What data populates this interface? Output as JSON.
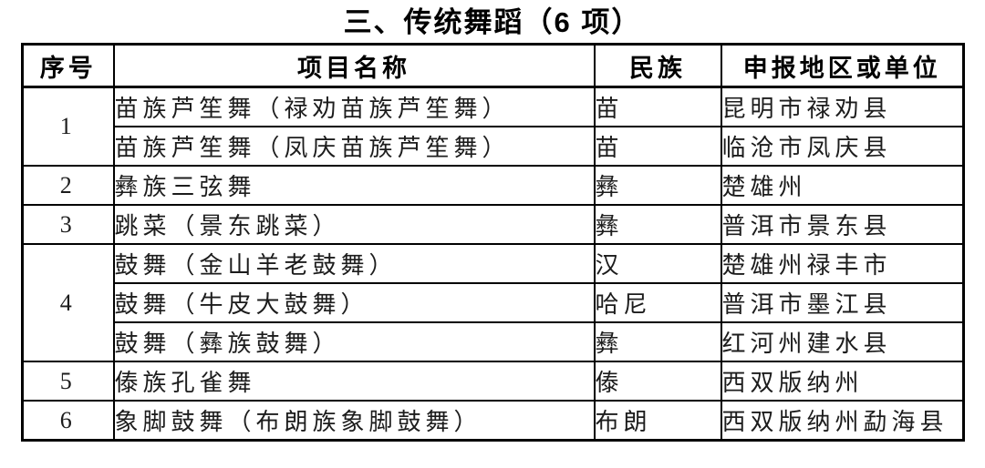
{
  "title": "三、传统舞蹈（6 项）",
  "table": {
    "headers": {
      "no": "序号",
      "name": "项目名称",
      "ethnic": "民族",
      "region": "申报地区或单位"
    },
    "groups": [
      {
        "no": "1",
        "items": [
          {
            "name": "苗族芦笙舞（禄劝苗族芦笙舞）",
            "ethnic": "苗",
            "region": "昆明市禄劝县"
          },
          {
            "name": "苗族芦笙舞（凤庆苗族芦笙舞）",
            "ethnic": "苗",
            "region": "临沧市凤庆县"
          }
        ]
      },
      {
        "no": "2",
        "items": [
          {
            "name": "彝族三弦舞",
            "ethnic": "彝",
            "region": "楚雄州"
          }
        ]
      },
      {
        "no": "3",
        "items": [
          {
            "name": "跳菜（景东跳菜）",
            "ethnic": "彝",
            "region": "普洱市景东县"
          }
        ]
      },
      {
        "no": "4",
        "items": [
          {
            "name": "鼓舞（金山羊老鼓舞）",
            "ethnic": "汉",
            "region": "楚雄州禄丰市"
          },
          {
            "name": "鼓舞（牛皮大鼓舞）",
            "ethnic": "哈尼",
            "region": "普洱市墨江县"
          },
          {
            "name": "鼓舞（彝族鼓舞）",
            "ethnic": "彝",
            "region": "红河州建水县"
          }
        ]
      },
      {
        "no": "5",
        "items": [
          {
            "name": "傣族孔雀舞",
            "ethnic": "傣",
            "region": "西双版纳州"
          }
        ]
      },
      {
        "no": "6",
        "items": [
          {
            "name": "象脚鼓舞（布朗族象脚鼓舞）",
            "ethnic": "布朗",
            "region": "西双版纳州勐海县"
          }
        ]
      }
    ]
  },
  "colors": {
    "text": "#111111",
    "border": "#000000",
    "background": "#ffffff"
  }
}
